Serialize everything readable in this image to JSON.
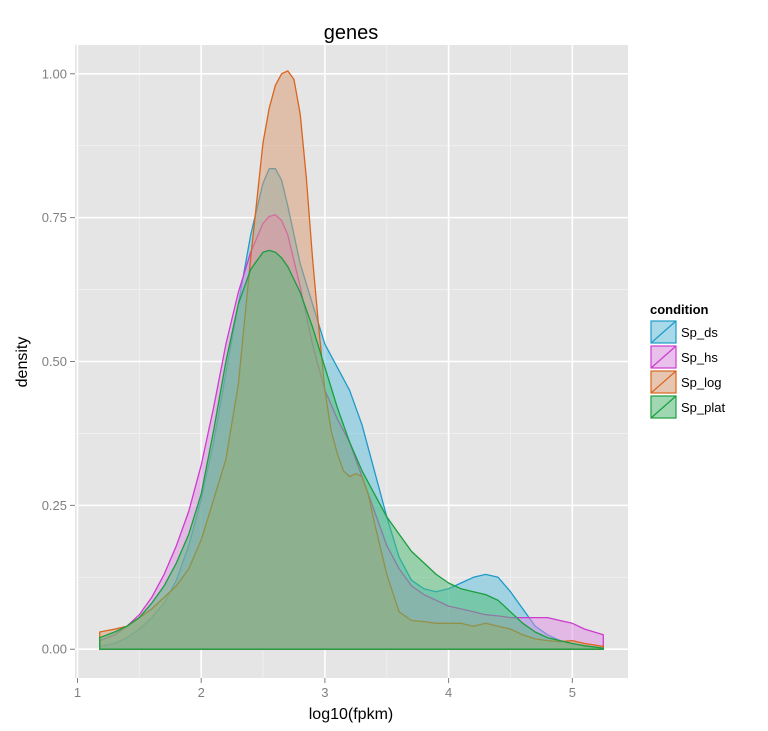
{
  "chart_data": {
    "type": "area",
    "title": "genes",
    "xlabel": "log10(fpkm)",
    "ylabel": "density",
    "xlim": [
      0.98,
      5.45
    ],
    "ylim": [
      -0.05,
      1.05
    ],
    "x_ticks": [
      1,
      2,
      3,
      4,
      5
    ],
    "y_ticks": [
      0.0,
      0.25,
      0.5,
      0.75,
      1.0
    ],
    "x_tick_labels": [
      "1",
      "2",
      "3",
      "4",
      "5"
    ],
    "y_tick_labels": [
      "0.00",
      "0.25",
      "0.50",
      "0.75",
      "1.00"
    ],
    "grid": true,
    "legend": {
      "title": "condition",
      "position": "right"
    },
    "series": [
      {
        "name": "Sp_ds",
        "color": "#1f9ac9",
        "fill": "#5bc0de",
        "x": [
          1.18,
          1.3,
          1.4,
          1.5,
          1.6,
          1.7,
          1.8,
          1.9,
          2.0,
          2.1,
          2.2,
          2.3,
          2.4,
          2.5,
          2.55,
          2.6,
          2.65,
          2.7,
          2.75,
          2.8,
          2.9,
          3.0,
          3.1,
          3.2,
          3.3,
          3.4,
          3.5,
          3.6,
          3.7,
          3.8,
          3.9,
          4.0,
          4.1,
          4.2,
          4.3,
          4.4,
          4.5,
          4.6,
          4.7,
          4.8,
          4.9,
          5.0,
          5.1,
          5.25
        ],
        "y": [
          0.005,
          0.01,
          0.02,
          0.035,
          0.055,
          0.08,
          0.12,
          0.18,
          0.26,
          0.36,
          0.48,
          0.6,
          0.72,
          0.81,
          0.835,
          0.835,
          0.815,
          0.77,
          0.72,
          0.67,
          0.6,
          0.53,
          0.49,
          0.45,
          0.39,
          0.31,
          0.23,
          0.16,
          0.12,
          0.105,
          0.1,
          0.105,
          0.115,
          0.125,
          0.13,
          0.125,
          0.1,
          0.07,
          0.04,
          0.025,
          0.015,
          0.01,
          0.006,
          0.002
        ]
      },
      {
        "name": "Sp_hs",
        "color": "#cc3ccf",
        "fill": "#e08be3",
        "x": [
          1.18,
          1.3,
          1.4,
          1.5,
          1.6,
          1.7,
          1.8,
          1.9,
          2.0,
          2.1,
          2.2,
          2.3,
          2.4,
          2.5,
          2.55,
          2.6,
          2.65,
          2.7,
          2.8,
          2.9,
          3.0,
          3.1,
          3.2,
          3.3,
          3.4,
          3.5,
          3.6,
          3.7,
          3.8,
          3.9,
          4.0,
          4.1,
          4.2,
          4.3,
          4.4,
          4.5,
          4.6,
          4.7,
          4.8,
          4.9,
          5.0,
          5.1,
          5.25
        ],
        "y": [
          0.015,
          0.025,
          0.04,
          0.06,
          0.09,
          0.13,
          0.18,
          0.24,
          0.32,
          0.42,
          0.53,
          0.62,
          0.69,
          0.74,
          0.752,
          0.755,
          0.745,
          0.72,
          0.63,
          0.53,
          0.45,
          0.4,
          0.36,
          0.3,
          0.24,
          0.18,
          0.14,
          0.11,
          0.095,
          0.085,
          0.075,
          0.07,
          0.065,
          0.06,
          0.058,
          0.055,
          0.055,
          0.055,
          0.055,
          0.05,
          0.045,
          0.035,
          0.025
        ]
      },
      {
        "name": "Sp_log",
        "color": "#d8651e",
        "fill": "#d99a6e",
        "x": [
          1.18,
          1.3,
          1.4,
          1.5,
          1.6,
          1.7,
          1.8,
          1.9,
          2.0,
          2.1,
          2.2,
          2.3,
          2.4,
          2.5,
          2.55,
          2.6,
          2.65,
          2.7,
          2.75,
          2.8,
          2.85,
          2.9,
          2.95,
          3.0,
          3.05,
          3.1,
          3.15,
          3.2,
          3.25,
          3.3,
          3.35,
          3.4,
          3.5,
          3.6,
          3.7,
          3.8,
          3.9,
          4.0,
          4.1,
          4.2,
          4.3,
          4.4,
          4.5,
          4.6,
          4.7,
          4.8,
          4.9,
          5.0,
          5.1,
          5.25
        ],
        "y": [
          0.03,
          0.035,
          0.04,
          0.055,
          0.07,
          0.09,
          0.11,
          0.14,
          0.19,
          0.26,
          0.33,
          0.46,
          0.68,
          0.88,
          0.94,
          0.98,
          1.0,
          1.005,
          0.99,
          0.93,
          0.82,
          0.68,
          0.56,
          0.45,
          0.38,
          0.34,
          0.31,
          0.3,
          0.305,
          0.3,
          0.27,
          0.22,
          0.13,
          0.065,
          0.05,
          0.048,
          0.045,
          0.045,
          0.045,
          0.04,
          0.045,
          0.04,
          0.035,
          0.025,
          0.018,
          0.015,
          0.013,
          0.015,
          0.01,
          0.005
        ]
      },
      {
        "name": "Sp_plat",
        "color": "#1a9e3f",
        "fill": "#4dbb73",
        "x": [
          1.18,
          1.3,
          1.4,
          1.5,
          1.6,
          1.7,
          1.8,
          1.9,
          2.0,
          2.1,
          2.2,
          2.3,
          2.4,
          2.5,
          2.55,
          2.6,
          2.65,
          2.7,
          2.8,
          2.9,
          3.0,
          3.1,
          3.2,
          3.3,
          3.4,
          3.5,
          3.6,
          3.7,
          3.8,
          3.9,
          4.0,
          4.1,
          4.2,
          4.3,
          4.4,
          4.5,
          4.6,
          4.7,
          4.8,
          4.9,
          5.0,
          5.1,
          5.25
        ],
        "y": [
          0.02,
          0.03,
          0.04,
          0.055,
          0.08,
          0.11,
          0.15,
          0.2,
          0.27,
          0.38,
          0.5,
          0.6,
          0.66,
          0.69,
          0.693,
          0.69,
          0.68,
          0.665,
          0.62,
          0.56,
          0.49,
          0.42,
          0.36,
          0.31,
          0.27,
          0.23,
          0.2,
          0.17,
          0.15,
          0.13,
          0.115,
          0.105,
          0.1,
          0.095,
          0.085,
          0.065,
          0.045,
          0.03,
          0.02,
          0.015,
          0.01,
          0.006,
          0.002
        ]
      }
    ]
  }
}
